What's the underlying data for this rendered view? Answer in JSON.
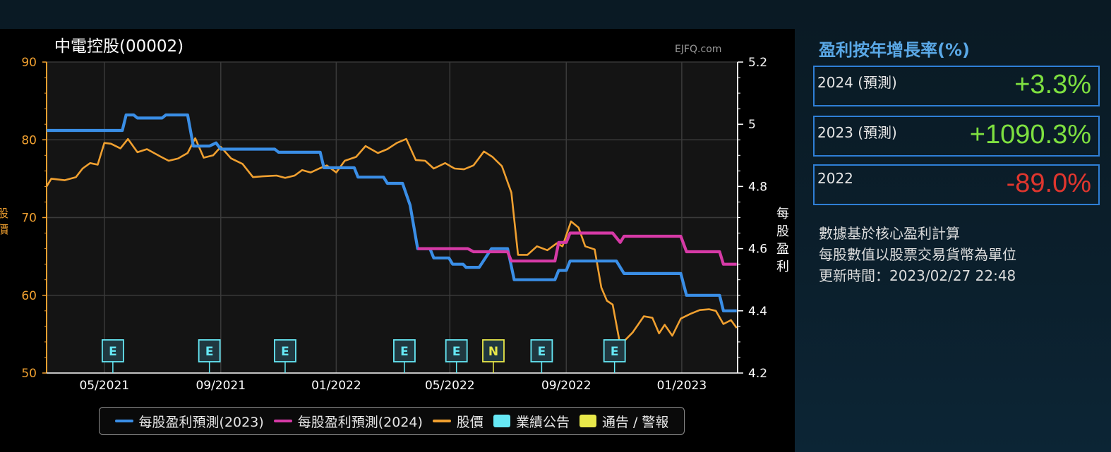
{
  "chart": {
    "title": "中電控股(00002)",
    "watermark": "EJFQ.com",
    "left_axis_label": "股價",
    "right_axis_label": "每股盈利"
  },
  "legend": {
    "items": [
      {
        "label": "每股盈利預測(2023)",
        "kind": "line",
        "color": "#3a8ee6"
      },
      {
        "label": "每股盈利預測(2024)",
        "kind": "line",
        "color": "#d63aa6"
      },
      {
        "label": "股價",
        "kind": "line",
        "color": "#f0a030"
      },
      {
        "label": "業績公告",
        "kind": "square",
        "color": "#66e8f5"
      },
      {
        "label": "通告 / 警報",
        "kind": "square",
        "color": "#e8e84a"
      }
    ]
  },
  "side": {
    "title": "盈利按年增長率(%)",
    "stats": [
      {
        "label": "2024 (預測)",
        "value": "+3.3%",
        "color": "#7ee040"
      },
      {
        "label": "2023 (預測)",
        "value": "+1090.3%",
        "color": "#7ee040"
      },
      {
        "label": "2022",
        "value": "-89.0%",
        "color": "#e0362e"
      }
    ],
    "notes": [
      "數據基於核心盈利計算",
      "每股數值以股票交易貨幣為單位",
      "更新時間：2023/02/27 22:48"
    ]
  },
  "colors": {
    "eps2023": "#3a8ee6",
    "eps2024": "#d63aa6",
    "price": "#f0a030",
    "marker_e": "#66e8f5",
    "marker_n": "#e8e84a",
    "left_axis": "#f0a030",
    "right_axis": "#ffffff"
  },
  "chart_data": {
    "type": "line",
    "x_range": [
      "2021-03-01",
      "2023-03-01"
    ],
    "x_ticks": [
      "05/2021",
      "09/2021",
      "01/2022",
      "05/2022",
      "09/2022",
      "01/2023"
    ],
    "x_tick_dates": [
      "2021-05-01",
      "2021-09-01",
      "2022-01-01",
      "2022-05-01",
      "2022-09-01",
      "2023-01-01"
    ],
    "y_left": {
      "label": "股價",
      "range": [
        50,
        90
      ],
      "ticks": [
        50,
        60,
        70,
        80,
        90
      ]
    },
    "y_right": {
      "label": "每股盈利",
      "range": [
        4.2,
        5.2
      ],
      "ticks": [
        "4.2",
        "4.4",
        "4.6",
        "4.8",
        "5",
        "5.2"
      ]
    },
    "series": [
      {
        "name": "每股盈利預測(2023)",
        "axis": "right",
        "points": [
          [
            "2021-03-01",
            4.98
          ],
          [
            "2021-05-20",
            4.98
          ],
          [
            "2021-05-24",
            5.03
          ],
          [
            "2021-06-01",
            5.03
          ],
          [
            "2021-06-05",
            5.02
          ],
          [
            "2021-07-01",
            5.02
          ],
          [
            "2021-07-05",
            5.03
          ],
          [
            "2021-07-28",
            5.03
          ],
          [
            "2021-08-03",
            4.93
          ],
          [
            "2021-08-20",
            4.93
          ],
          [
            "2021-08-27",
            4.94
          ],
          [
            "2021-09-01",
            4.92
          ],
          [
            "2021-09-12",
            4.92
          ],
          [
            "2021-09-15",
            4.92
          ],
          [
            "2021-10-28",
            4.92
          ],
          [
            "2021-11-01",
            4.91
          ],
          [
            "2021-12-15",
            4.91
          ],
          [
            "2021-12-19",
            4.86
          ],
          [
            "2022-01-20",
            4.86
          ],
          [
            "2022-01-24",
            4.83
          ],
          [
            "2022-02-20",
            4.83
          ],
          [
            "2022-02-24",
            4.81
          ],
          [
            "2022-03-12",
            4.81
          ],
          [
            "2022-03-20",
            4.74
          ],
          [
            "2022-03-28",
            4.6
          ],
          [
            "2022-04-10",
            4.6
          ],
          [
            "2022-04-14",
            4.57
          ],
          [
            "2022-04-30",
            4.57
          ],
          [
            "2022-05-04",
            4.55
          ],
          [
            "2022-05-15",
            4.55
          ],
          [
            "2022-05-18",
            4.54
          ],
          [
            "2022-06-01",
            4.54
          ],
          [
            "2022-06-14",
            4.6
          ],
          [
            "2022-07-01",
            4.6
          ],
          [
            "2022-07-08",
            4.5
          ],
          [
            "2022-08-20",
            4.5
          ],
          [
            "2022-08-24",
            4.53
          ],
          [
            "2022-09-01",
            4.53
          ],
          [
            "2022-09-05",
            4.56
          ],
          [
            "2022-10-24",
            4.56
          ],
          [
            "2022-11-01",
            4.52
          ],
          [
            "2022-12-31",
            4.52
          ],
          [
            "2023-01-06",
            4.45
          ],
          [
            "2023-02-10",
            4.45
          ],
          [
            "2023-02-14",
            4.4
          ],
          [
            "2023-02-28",
            4.4
          ]
        ]
      },
      {
        "name": "每股盈利預測(2024)",
        "axis": "right",
        "points": [
          [
            "2022-03-28",
            4.6
          ],
          [
            "2022-05-20",
            4.6
          ],
          [
            "2022-05-26",
            4.59
          ],
          [
            "2022-07-01",
            4.59
          ],
          [
            "2022-07-05",
            4.56
          ],
          [
            "2022-08-20",
            4.56
          ],
          [
            "2022-08-24",
            4.62
          ],
          [
            "2022-09-01",
            4.62
          ],
          [
            "2022-09-05",
            4.65
          ],
          [
            "2022-10-20",
            4.65
          ],
          [
            "2022-10-28",
            4.62
          ],
          [
            "2022-11-01",
            4.64
          ],
          [
            "2022-12-31",
            4.64
          ],
          [
            "2023-01-06",
            4.59
          ],
          [
            "2023-02-10",
            4.59
          ],
          [
            "2023-02-14",
            4.55
          ],
          [
            "2023-02-28",
            4.55
          ]
        ]
      },
      {
        "name": "股價",
        "axis": "left",
        "points": [
          [
            "2021-03-01",
            74
          ],
          [
            "2021-03-06",
            75
          ],
          [
            "2021-03-20",
            74.8
          ],
          [
            "2021-04-01",
            75.2
          ],
          [
            "2021-04-08",
            76.3
          ],
          [
            "2021-04-16",
            77
          ],
          [
            "2021-04-24",
            76.8
          ],
          [
            "2021-05-01",
            79.6
          ],
          [
            "2021-05-08",
            79.5
          ],
          [
            "2021-05-18",
            78.9
          ],
          [
            "2021-05-26",
            80.1
          ],
          [
            "2021-06-05",
            78.4
          ],
          [
            "2021-06-15",
            78.8
          ],
          [
            "2021-06-30",
            77.8
          ],
          [
            "2021-07-08",
            77.3
          ],
          [
            "2021-07-18",
            77.6
          ],
          [
            "2021-07-28",
            78.3
          ],
          [
            "2021-08-05",
            80.2
          ],
          [
            "2021-08-14",
            77.7
          ],
          [
            "2021-08-24",
            78
          ],
          [
            "2021-09-01",
            79.1
          ],
          [
            "2021-09-12",
            77.6
          ],
          [
            "2021-09-24",
            76.9
          ],
          [
            "2021-10-05",
            75.2
          ],
          [
            "2021-10-15",
            75.3
          ],
          [
            "2021-10-30",
            75.4
          ],
          [
            "2021-11-08",
            75.1
          ],
          [
            "2021-11-18",
            75.4
          ],
          [
            "2021-11-26",
            76.1
          ],
          [
            "2021-12-05",
            75.8
          ],
          [
            "2021-12-14",
            76.3
          ],
          [
            "2021-12-22",
            76.7
          ],
          [
            "2022-01-01",
            75.8
          ],
          [
            "2022-01-10",
            77.3
          ],
          [
            "2022-01-22",
            77.8
          ],
          [
            "2022-02-01",
            79.2
          ],
          [
            "2022-02-14",
            78.3
          ],
          [
            "2022-02-24",
            78.8
          ],
          [
            "2022-03-06",
            79.6
          ],
          [
            "2022-03-16",
            80.1
          ],
          [
            "2022-03-26",
            77.4
          ],
          [
            "2022-04-05",
            77.3
          ],
          [
            "2022-04-14",
            76.3
          ],
          [
            "2022-04-26",
            77
          ],
          [
            "2022-05-06",
            76.3
          ],
          [
            "2022-05-16",
            76.2
          ],
          [
            "2022-05-26",
            76.7
          ],
          [
            "2022-06-06",
            78.5
          ],
          [
            "2022-06-15",
            77.8
          ],
          [
            "2022-06-25",
            76.6
          ],
          [
            "2022-07-05",
            73.2
          ],
          [
            "2022-07-12",
            65.2
          ],
          [
            "2022-07-22",
            65.2
          ],
          [
            "2022-08-01",
            66.3
          ],
          [
            "2022-08-12",
            65.8
          ],
          [
            "2022-08-22",
            66.7
          ],
          [
            "2022-08-28",
            66.3
          ],
          [
            "2022-09-06",
            69.5
          ],
          [
            "2022-09-14",
            68.7
          ],
          [
            "2022-09-21",
            66.3
          ],
          [
            "2022-10-01",
            65.9
          ],
          [
            "2022-10-08",
            61
          ],
          [
            "2022-10-14",
            59.3
          ],
          [
            "2022-10-20",
            58.8
          ],
          [
            "2022-10-28",
            53.6
          ],
          [
            "2022-11-10",
            55.2
          ],
          [
            "2022-11-22",
            57.3
          ],
          [
            "2022-12-01",
            57.1
          ],
          [
            "2022-12-08",
            55.1
          ],
          [
            "2022-12-14",
            56.2
          ],
          [
            "2022-12-22",
            54.8
          ],
          [
            "2022-12-31",
            57
          ],
          [
            "2023-01-10",
            57.6
          ],
          [
            "2023-01-20",
            58.1
          ],
          [
            "2023-01-30",
            58.2
          ],
          [
            "2023-02-06",
            58
          ],
          [
            "2023-02-14",
            56.3
          ],
          [
            "2023-02-22",
            56.8
          ],
          [
            "2023-02-28",
            55.8
          ]
        ]
      }
    ],
    "markers": [
      {
        "date": "2021-05-10",
        "label": "E",
        "type": "業績公告"
      },
      {
        "date": "2021-08-20",
        "label": "E",
        "type": "業績公告"
      },
      {
        "date": "2021-11-08",
        "label": "E",
        "type": "業績公告"
      },
      {
        "date": "2022-03-14",
        "label": "E",
        "type": "業績公告"
      },
      {
        "date": "2022-05-08",
        "label": "E",
        "type": "業績公告"
      },
      {
        "date": "2022-06-16",
        "label": "N",
        "type": "通告 / 警報"
      },
      {
        "date": "2022-08-06",
        "label": "E",
        "type": "業績公告"
      },
      {
        "date": "2022-10-22",
        "label": "E",
        "type": "業績公告"
      }
    ]
  }
}
